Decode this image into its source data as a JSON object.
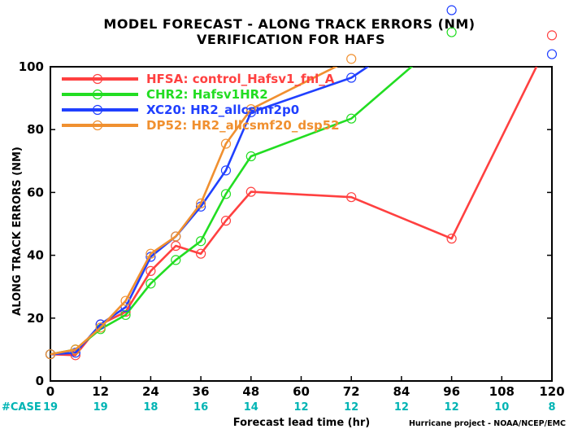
{
  "chart_data": {
    "type": "line",
    "title": "MODEL FORECAST - ALONG TRACK ERRORS (NM)",
    "subtitle": "VERIFICATION FOR HAFS",
    "xlabel": "Forecast lead time (hr)",
    "ylabel": "ALONG TRACK ERRORS (NM)",
    "xlim": [
      0,
      120
    ],
    "ylim": [
      0,
      100
    ],
    "xticks": [
      "0",
      "12",
      "24",
      "36",
      "48",
      "60",
      "72",
      "84",
      "96",
      "108",
      "120"
    ],
    "yticks": [
      "0",
      "20",
      "40",
      "60",
      "80",
      "100"
    ],
    "grid": false,
    "legend_position": "top-left",
    "series": [
      {
        "name": "HFSA: control_Hafsv1_fnl_A",
        "color": "#ff4040",
        "points": [
          [
            0,
            8.5
          ],
          [
            6,
            8.2
          ],
          [
            12,
            18
          ],
          [
            18,
            22
          ],
          [
            24,
            35
          ],
          [
            30,
            43
          ],
          [
            36,
            40.5
          ],
          [
            42,
            51
          ],
          [
            48,
            60.2
          ],
          [
            72,
            58.5
          ],
          [
            96,
            45.3
          ],
          [
            120,
            110
          ]
        ]
      },
      {
        "name": "CHR2: Hafsv1HR2",
        "color": "#22dd22",
        "points": [
          [
            0,
            8.5
          ],
          [
            6,
            10
          ],
          [
            12,
            16.5
          ],
          [
            18,
            21
          ],
          [
            24,
            31
          ],
          [
            30,
            38.5
          ],
          [
            36,
            44.5
          ],
          [
            42,
            59.5
          ],
          [
            48,
            71.5
          ],
          [
            72,
            83.5
          ],
          [
            96,
            111
          ]
        ]
      },
      {
        "name": "XC20: HR2_allcsmf2p0",
        "color": "#2040ff",
        "points": [
          [
            0,
            8.5
          ],
          [
            6,
            9
          ],
          [
            12,
            18
          ],
          [
            18,
            23.5
          ],
          [
            24,
            39.5
          ],
          [
            30,
            46
          ],
          [
            36,
            55.5
          ],
          [
            42,
            67
          ],
          [
            48,
            85.5
          ],
          [
            72,
            96.5
          ],
          [
            96,
            118
          ],
          [
            120,
            104
          ]
        ]
      },
      {
        "name": "DP52: HR2_allcsmf20_dsp52",
        "color": "#f09030",
        "points": [
          [
            0,
            8.5
          ],
          [
            6,
            10
          ],
          [
            12,
            17
          ],
          [
            18,
            25.5
          ],
          [
            24,
            40.5
          ],
          [
            30,
            46
          ],
          [
            36,
            56.5
          ],
          [
            42,
            75.5
          ],
          [
            48,
            86.5
          ],
          [
            72,
            102.5
          ]
        ]
      }
    ],
    "case_counts": {
      "label": "#CASE",
      "color": "#00b4b4",
      "hours": [
        0,
        12,
        24,
        36,
        48,
        60,
        72,
        84,
        96,
        108,
        120
      ],
      "values": [
        "19",
        "19",
        "18",
        "16",
        "14",
        "12",
        "12",
        "12",
        "12",
        "10",
        "8"
      ]
    }
  },
  "footer": {
    "credit": "Hurricane project - NOAA/NCEP/EMC"
  }
}
